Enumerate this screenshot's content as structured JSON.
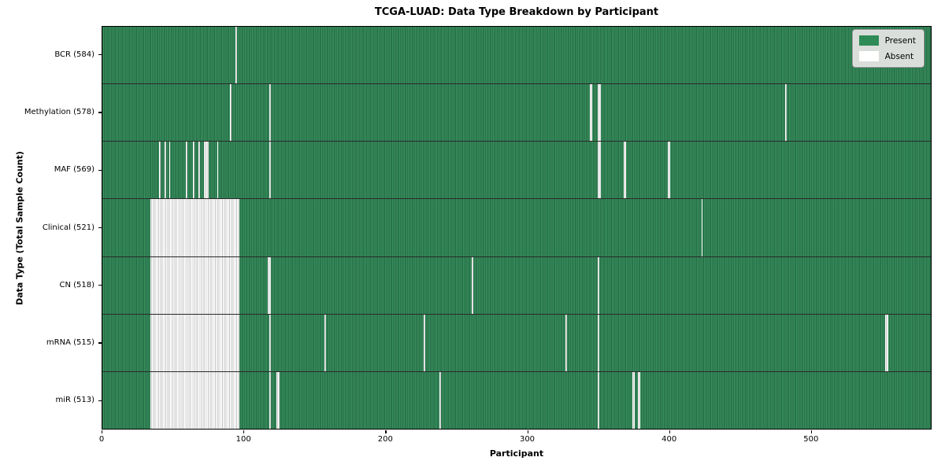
{
  "chart_data": {
    "type": "heatmap",
    "title": "TCGA-LUAD: Data Type Breakdown by Participant",
    "xlabel": "Participant",
    "ylabel": "Data Type (Total Sample Count)",
    "x_range": [
      0,
      585
    ],
    "x_ticks": [
      0,
      100,
      200,
      300,
      400,
      500
    ],
    "grid": false,
    "legend": {
      "position": "upper right",
      "entries": [
        {
          "label": "Present",
          "color": "#2e8b57"
        },
        {
          "label": "Absent",
          "color": "#ffffff"
        }
      ]
    },
    "colors": {
      "present": "#2e8b57",
      "absent": "#ffffff",
      "row_separator": "#2a2a2a"
    },
    "rows": [
      {
        "label": "BCR (584)",
        "data_type": "BCR",
        "sample_count": 584,
        "absent_ranges": [
          [
            94,
            95
          ]
        ]
      },
      {
        "label": "Methylation (578)",
        "data_type": "Methylation",
        "sample_count": 578,
        "absent_ranges": [
          [
            90,
            91
          ],
          [
            118,
            119
          ],
          [
            344,
            346
          ],
          [
            350,
            352
          ],
          [
            482,
            483
          ]
        ]
      },
      {
        "label": "MAF (569)",
        "data_type": "MAF",
        "sample_count": 569,
        "absent_ranges": [
          [
            40,
            41
          ],
          [
            44,
            45
          ],
          [
            47,
            48
          ],
          [
            59,
            60
          ],
          [
            64,
            65
          ],
          [
            68,
            69
          ],
          [
            72,
            75
          ],
          [
            81,
            82
          ],
          [
            118,
            119
          ],
          [
            350,
            352
          ],
          [
            368,
            370
          ],
          [
            399,
            401
          ]
        ]
      },
      {
        "label": "Clinical (521)",
        "data_type": "Clinical",
        "sample_count": 521,
        "absent_ranges": [
          [
            34,
            97
          ],
          [
            423,
            424
          ]
        ]
      },
      {
        "label": "CN (518)",
        "data_type": "CN",
        "sample_count": 518,
        "absent_ranges": [
          [
            34,
            97
          ],
          [
            117,
            119
          ],
          [
            261,
            262
          ],
          [
            350,
            351
          ]
        ]
      },
      {
        "label": "mRNA (515)",
        "data_type": "mRNA",
        "sample_count": 515,
        "absent_ranges": [
          [
            34,
            97
          ],
          [
            118,
            119
          ],
          [
            157,
            158
          ],
          [
            227,
            228
          ],
          [
            327,
            328
          ],
          [
            350,
            351
          ],
          [
            553,
            555
          ]
        ]
      },
      {
        "label": "miR (513)",
        "data_type": "miR",
        "sample_count": 513,
        "absent_ranges": [
          [
            34,
            97
          ],
          [
            118,
            119
          ],
          [
            123,
            125
          ],
          [
            238,
            239
          ],
          [
            350,
            351
          ],
          [
            374,
            376
          ],
          [
            378,
            380
          ]
        ]
      }
    ]
  }
}
